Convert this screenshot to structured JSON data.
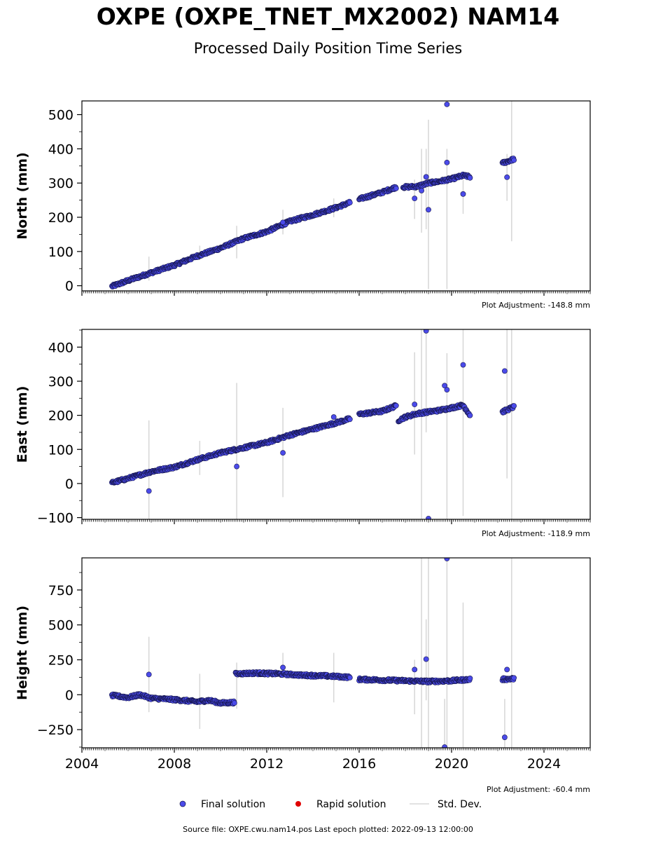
{
  "header": {
    "title": "OXPE (OXPE_TNET_MX2002) NAM14",
    "subtitle": "Processed Daily Position Time Series"
  },
  "legend": {
    "final_label": "Final solution",
    "rapid_label": "Rapid solution",
    "stddev_label": "Std. Dev."
  },
  "footer": {
    "source_text": "Source file: OXPE.cwu.nam14.pos  Last epoch plotted: 2022-09-13 12:00:00"
  },
  "colors": {
    "final_fill": "#4b4bea",
    "final_edge": "#15154a",
    "rapid": "#e00000",
    "stddev": "#d8d8d8"
  },
  "chart_data": [
    {
      "type": "scatter",
      "ylabel": "North (mm)",
      "xlim": [
        2004.0,
        2026.0
      ],
      "ylim": [
        -15,
        540
      ],
      "yticks": [
        0,
        100,
        200,
        300,
        400,
        500
      ],
      "ytick_labels": [
        "0",
        "100",
        "200",
        "300",
        "400",
        "500"
      ],
      "xticks": [
        2004,
        2008,
        2012,
        2016,
        2020,
        2024
      ],
      "xtick_labels": [],
      "adjustment": "Plot Adjustment: -148.8 mm",
      "segments": [
        {
          "x": [
            2005.3,
            2006.0,
            2007.0,
            2008.0,
            2009.0,
            2010.0,
            2011.0,
            2012.0,
            2013.0,
            2014.0,
            2015.0,
            2015.6
          ],
          "y": [
            -2,
            15,
            38,
            60,
            87,
            110,
            138,
            158,
            188,
            207,
            228,
            243
          ]
        },
        {
          "x": [
            2016.0,
            2017.0,
            2017.6
          ],
          "y": [
            253,
            273,
            288
          ]
        },
        {
          "x": [
            2017.9,
            2018.5,
            2019.0,
            2019.5,
            2020.0,
            2020.5,
            2020.8
          ],
          "y": [
            288,
            290,
            300,
            305,
            312,
            322,
            318
          ]
        },
        {
          "x": [
            2022.2,
            2022.7
          ],
          "y": [
            358,
            370
          ]
        }
      ],
      "outliers": [
        {
          "x": 2018.4,
          "y": 255
        },
        {
          "x": 2018.7,
          "y": 278
        },
        {
          "x": 2018.9,
          "y": 318
        },
        {
          "x": 2019.0,
          "y": 222
        },
        {
          "x": 2019.8,
          "y": 360
        },
        {
          "x": 2019.8,
          "y": 530
        },
        {
          "x": 2020.5,
          "y": 268
        },
        {
          "x": 2022.4,
          "y": 317
        },
        {
          "x": 2012.7,
          "y": 185
        }
      ],
      "errorbars": [
        {
          "x": 2006.9,
          "lo": 15,
          "hi": 85
        },
        {
          "x": 2009.1,
          "lo": 75,
          "hi": 117
        },
        {
          "x": 2010.7,
          "lo": 80,
          "hi": 175
        },
        {
          "x": 2012.7,
          "lo": 150,
          "hi": 222
        },
        {
          "x": 2014.9,
          "lo": 200,
          "hi": 255
        },
        {
          "x": 2018.4,
          "lo": 195,
          "hi": 310
        },
        {
          "x": 2018.7,
          "lo": 155,
          "hi": 400
        },
        {
          "x": 2018.9,
          "lo": 165,
          "hi": 400
        },
        {
          "x": 2019.0,
          "lo": -10,
          "hi": 485
        },
        {
          "x": 2019.8,
          "lo": -10,
          "hi": 400
        },
        {
          "x": 2020.5,
          "lo": 210,
          "hi": 310
        },
        {
          "x": 2022.4,
          "lo": 248,
          "hi": 385
        },
        {
          "x": 2022.6,
          "lo": 130,
          "hi": 540
        }
      ]
    },
    {
      "type": "scatter",
      "ylabel": "East (mm)",
      "xlim": [
        2004.0,
        2026.0
      ],
      "ylim": [
        -105,
        452
      ],
      "yticks": [
        -100,
        0,
        100,
        200,
        300,
        400
      ],
      "ytick_labels": [
        "−100",
        "0",
        "100",
        "200",
        "300",
        "400"
      ],
      "xticks": [
        2004,
        2008,
        2012,
        2016,
        2020,
        2024
      ],
      "xtick_labels": [],
      "adjustment": "Plot Adjustment: -118.9 mm",
      "segments": [
        {
          "x": [
            2005.3,
            2006.0,
            2007.0,
            2008.0,
            2009.0,
            2010.0,
            2011.0,
            2012.0,
            2013.0,
            2014.0,
            2015.0,
            2015.6
          ],
          "y": [
            2,
            15,
            35,
            48,
            70,
            90,
            105,
            120,
            142,
            160,
            178,
            190
          ]
        },
        {
          "x": [
            2016.0,
            2017.0,
            2017.6
          ],
          "y": [
            203,
            212,
            228
          ]
        },
        {
          "x": [
            2017.7,
            2018.0,
            2018.5,
            2019.0,
            2019.5,
            2020.0,
            2020.5,
            2020.8
          ],
          "y": [
            185,
            195,
            205,
            210,
            215,
            222,
            230,
            200
          ]
        },
        {
          "x": [
            2022.2,
            2022.7
          ],
          "y": [
            210,
            225
          ]
        }
      ],
      "outliers": [
        {
          "x": 2006.9,
          "y": -22
        },
        {
          "x": 2010.7,
          "y": 50
        },
        {
          "x": 2012.7,
          "y": 90
        },
        {
          "x": 2014.9,
          "y": 195
        },
        {
          "x": 2018.4,
          "y": 232
        },
        {
          "x": 2018.9,
          "y": 448
        },
        {
          "x": 2019.0,
          "y": -103
        },
        {
          "x": 2019.7,
          "y": 287
        },
        {
          "x": 2019.8,
          "y": 275
        },
        {
          "x": 2020.5,
          "y": 348
        },
        {
          "x": 2022.3,
          "y": 330
        }
      ],
      "errorbars": [
        {
          "x": 2006.9,
          "lo": -105,
          "hi": 185
        },
        {
          "x": 2009.1,
          "lo": 25,
          "hi": 125
        },
        {
          "x": 2010.7,
          "lo": -105,
          "hi": 295
        },
        {
          "x": 2012.7,
          "lo": -40,
          "hi": 222
        },
        {
          "x": 2018.4,
          "lo": 85,
          "hi": 385
        },
        {
          "x": 2018.7,
          "lo": -105,
          "hi": 452
        },
        {
          "x": 2018.9,
          "lo": 150,
          "hi": 452
        },
        {
          "x": 2019.8,
          "lo": -105,
          "hi": 382
        },
        {
          "x": 2020.5,
          "lo": -95,
          "hi": 452
        },
        {
          "x": 2022.4,
          "lo": 15,
          "hi": 452
        },
        {
          "x": 2022.6,
          "lo": -105,
          "hi": 452
        }
      ]
    },
    {
      "type": "scatter",
      "ylabel": "Height (mm)",
      "xlim": [
        2004.0,
        2026.0
      ],
      "ylim": [
        -380,
        980
      ],
      "yticks": [
        -250,
        0,
        250,
        500,
        750
      ],
      "ytick_labels": [
        "−250",
        "0",
        "250",
        "500",
        "750"
      ],
      "xticks": [
        2004,
        2008,
        2012,
        2016,
        2020,
        2024
      ],
      "xtick_labels": [
        "2004",
        "2008",
        "2012",
        "2016",
        "2020",
        "2024"
      ],
      "adjustment": "Plot Adjustment: -60.4 mm",
      "segments": [
        {
          "x": [
            2005.3,
            2006.0,
            2006.5,
            2007.0,
            2008.0,
            2009.0,
            2009.5,
            2010.0,
            2010.6
          ],
          "y": [
            -5,
            -20,
            0,
            -25,
            -35,
            -50,
            -40,
            -60,
            -55
          ]
        },
        {
          "x": [
            2010.65,
            2011.5,
            2012.5,
            2013.5,
            2014.5,
            2015.6
          ],
          "y": [
            150,
            155,
            150,
            140,
            135,
            125
          ]
        },
        {
          "x": [
            2016.0,
            2017.0,
            2018.0,
            2019.0,
            2020.0,
            2020.8
          ],
          "y": [
            110,
            105,
            100,
            95,
            100,
            110
          ]
        },
        {
          "x": [
            2022.2,
            2022.7
          ],
          "y": [
            110,
            115
          ]
        }
      ],
      "outliers": [
        {
          "x": 2006.9,
          "y": 145
        },
        {
          "x": 2012.7,
          "y": 195
        },
        {
          "x": 2018.4,
          "y": 180
        },
        {
          "x": 2018.9,
          "y": 255
        },
        {
          "x": 2019.7,
          "y": -375
        },
        {
          "x": 2019.8,
          "y": 975
        },
        {
          "x": 2022.3,
          "y": -305
        },
        {
          "x": 2022.4,
          "y": 180
        }
      ],
      "errorbars": [
        {
          "x": 2006.9,
          "lo": -125,
          "hi": 415
        },
        {
          "x": 2009.1,
          "lo": -245,
          "hi": 150
        },
        {
          "x": 2010.7,
          "lo": -100,
          "hi": 230
        },
        {
          "x": 2012.7,
          "lo": 150,
          "hi": 300
        },
        {
          "x": 2014.9,
          "lo": -55,
          "hi": 300
        },
        {
          "x": 2018.4,
          "lo": -140,
          "hi": 250
        },
        {
          "x": 2018.7,
          "lo": -380,
          "hi": 980
        },
        {
          "x": 2018.9,
          "lo": -40,
          "hi": 540
        },
        {
          "x": 2019.0,
          "lo": -380,
          "hi": 980
        },
        {
          "x": 2019.7,
          "lo": -380,
          "hi": -30
        },
        {
          "x": 2019.8,
          "lo": -380,
          "hi": 980
        },
        {
          "x": 2020.5,
          "lo": -380,
          "hi": 660
        },
        {
          "x": 2022.3,
          "lo": -380,
          "hi": -30
        },
        {
          "x": 2022.6,
          "lo": -380,
          "hi": 980
        }
      ]
    }
  ]
}
